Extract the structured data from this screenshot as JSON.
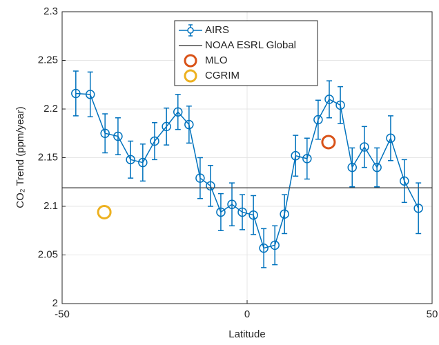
{
  "chart_data": {
    "type": "line",
    "xlabel": "Latitude",
    "ylabel": "CO₂ Trend (ppm/year)",
    "xlim": [
      -50,
      50
    ],
    "xticks": [
      -50,
      0,
      50
    ],
    "ylim": [
      2,
      2.3
    ],
    "yticks": [
      2,
      2.05,
      2.1,
      2.15,
      2.2,
      2.25,
      2.3
    ],
    "grid": true,
    "legend": "top-center",
    "series": [
      {
        "name": "AIRS",
        "color": "#0072bd",
        "style": "errorbar-line",
        "x": [
          -46.3,
          -42.4,
          -38.4,
          -34.9,
          -31.5,
          -28.2,
          -25,
          -21.8,
          -18.7,
          -15.7,
          -12.7,
          -9.9,
          -7.1,
          -4.1,
          -1.3,
          1.7,
          4.5,
          7.5,
          10.1,
          13.1,
          16.2,
          19.2,
          22.2,
          25.2,
          28.4,
          31.7,
          35.1,
          38.8,
          42.5,
          46.3
        ],
        "values": [
          2.216,
          2.215,
          2.175,
          2.172,
          2.148,
          2.145,
          2.167,
          2.182,
          2.197,
          2.184,
          2.129,
          2.121,
          2.094,
          2.102,
          2.094,
          2.091,
          2.057,
          2.06,
          2.092,
          2.152,
          2.149,
          2.189,
          2.21,
          2.204,
          2.14,
          2.161,
          2.14,
          2.17,
          2.126,
          2.098
        ],
        "errors": [
          0.023,
          0.023,
          0.02,
          0.019,
          0.019,
          0.019,
          0.019,
          0.019,
          0.018,
          0.019,
          0.021,
          0.021,
          0.019,
          0.022,
          0.018,
          0.02,
          0.02,
          0.02,
          0.02,
          0.021,
          0.021,
          0.02,
          0.019,
          0.019,
          0.02,
          0.021,
          0.02,
          0.023,
          0.022,
          0.026
        ]
      },
      {
        "name": "NOAA ESRL Global",
        "color": "#4d4d4d",
        "style": "hline",
        "y": 2.119
      },
      {
        "name": "MLO",
        "color": "#d95319",
        "style": "marker",
        "x": [
          22
        ],
        "values": [
          2.166
        ]
      },
      {
        "name": "CGRIM",
        "color": "#edb120",
        "style": "marker",
        "x": [
          -38.6
        ],
        "values": [
          2.094
        ]
      }
    ]
  }
}
